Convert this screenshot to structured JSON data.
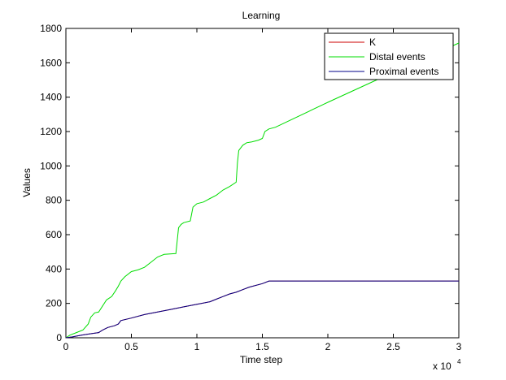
{
  "chart_data": {
    "type": "line",
    "title": "Learning",
    "xlabel": "Time step",
    "ylabel": "Values",
    "x_exponent_label": "x 10",
    "x_exponent_power": "4",
    "xlim": [
      0,
      3
    ],
    "ylim": [
      0,
      1800
    ],
    "xticks": [
      0,
      0.5,
      1,
      1.5,
      2,
      2.5,
      3
    ],
    "xtick_labels": [
      "0",
      "0.5",
      "1",
      "1.5",
      "2",
      "2.5",
      "3"
    ],
    "yticks": [
      0,
      200,
      400,
      600,
      800,
      1000,
      1200,
      1400,
      1600,
      1800
    ],
    "ytick_labels": [
      "0",
      "200",
      "400",
      "600",
      "800",
      "1000",
      "1200",
      "1400",
      "1600",
      "1800"
    ],
    "legend_position": "top-right",
    "series": [
      {
        "name": "K",
        "color": "#cc0000",
        "points": [
          [
            0,
            0
          ],
          [
            0.05,
            5
          ],
          [
            0.12,
            15
          ],
          [
            0.2,
            25
          ],
          [
            0.25,
            30
          ],
          [
            0.28,
            45
          ],
          [
            0.32,
            60
          ],
          [
            0.37,
            70
          ],
          [
            0.4,
            80
          ],
          [
            0.42,
            100
          ],
          [
            0.5,
            115
          ],
          [
            0.6,
            135
          ],
          [
            0.7,
            150
          ],
          [
            0.8,
            165
          ],
          [
            0.9,
            180
          ],
          [
            1.0,
            195
          ],
          [
            1.1,
            210
          ],
          [
            1.15,
            225
          ],
          [
            1.2,
            240
          ],
          [
            1.25,
            255
          ],
          [
            1.3,
            265
          ],
          [
            1.35,
            280
          ],
          [
            1.4,
            295
          ],
          [
            1.5,
            315
          ],
          [
            1.55,
            330
          ],
          [
            3.0,
            330
          ]
        ]
      },
      {
        "name": "Distal events",
        "color": "#00dd00",
        "points": [
          [
            0,
            0
          ],
          [
            0.03,
            15
          ],
          [
            0.08,
            30
          ],
          [
            0.13,
            45
          ],
          [
            0.17,
            80
          ],
          [
            0.19,
            120
          ],
          [
            0.22,
            145
          ],
          [
            0.25,
            150
          ],
          [
            0.28,
            185
          ],
          [
            0.31,
            220
          ],
          [
            0.35,
            240
          ],
          [
            0.38,
            275
          ],
          [
            0.4,
            300
          ],
          [
            0.42,
            330
          ],
          [
            0.45,
            355
          ],
          [
            0.5,
            385
          ],
          [
            0.55,
            395
          ],
          [
            0.6,
            410
          ],
          [
            0.65,
            440
          ],
          [
            0.7,
            470
          ],
          [
            0.75,
            485
          ],
          [
            0.84,
            490
          ],
          [
            0.86,
            640
          ],
          [
            0.88,
            660
          ],
          [
            0.9,
            670
          ],
          [
            0.95,
            680
          ],
          [
            0.97,
            760
          ],
          [
            1.0,
            780
          ],
          [
            1.05,
            790
          ],
          [
            1.1,
            810
          ],
          [
            1.15,
            830
          ],
          [
            1.2,
            860
          ],
          [
            1.25,
            880
          ],
          [
            1.3,
            905
          ],
          [
            1.31,
            1020
          ],
          [
            1.32,
            1090
          ],
          [
            1.35,
            1120
          ],
          [
            1.38,
            1135
          ],
          [
            1.42,
            1140
          ],
          [
            1.47,
            1150
          ],
          [
            1.5,
            1160
          ],
          [
            1.52,
            1200
          ],
          [
            1.55,
            1215
          ],
          [
            1.6,
            1225
          ],
          [
            2.0,
            1370
          ],
          [
            2.5,
            1545
          ],
          [
            3.0,
            1715
          ]
        ]
      },
      {
        "name": "Proximal events",
        "color": "#000088",
        "points": [
          [
            0,
            0
          ],
          [
            0.05,
            5
          ],
          [
            0.12,
            15
          ],
          [
            0.2,
            25
          ],
          [
            0.25,
            30
          ],
          [
            0.28,
            45
          ],
          [
            0.32,
            60
          ],
          [
            0.37,
            70
          ],
          [
            0.4,
            80
          ],
          [
            0.42,
            100
          ],
          [
            0.5,
            115
          ],
          [
            0.6,
            135
          ],
          [
            0.7,
            150
          ],
          [
            0.8,
            165
          ],
          [
            0.9,
            180
          ],
          [
            1.0,
            195
          ],
          [
            1.1,
            210
          ],
          [
            1.15,
            225
          ],
          [
            1.2,
            240
          ],
          [
            1.25,
            255
          ],
          [
            1.3,
            265
          ],
          [
            1.35,
            280
          ],
          [
            1.4,
            295
          ],
          [
            1.5,
            315
          ],
          [
            1.55,
            330
          ],
          [
            3.0,
            330
          ]
        ]
      }
    ]
  }
}
